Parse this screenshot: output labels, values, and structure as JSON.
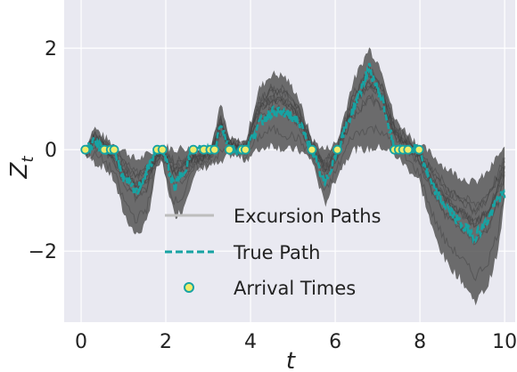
{
  "chart_data": {
    "type": "line",
    "xlabel": "t",
    "ylabel": "Z",
    "ylabel_subscript": "t",
    "xlim": [
      -0.4,
      10.25
    ],
    "ylim": [
      -3.4,
      2.95
    ],
    "xticks": [
      0,
      2,
      4,
      6,
      8,
      10
    ],
    "yticks": [
      2,
      0,
      -2
    ],
    "ytick_labels": [
      "2",
      "0",
      "−2"
    ],
    "grid": true,
    "background": "#e9e9f1",
    "colors": {
      "excursion": "#555555",
      "true_path": "#17a3a3",
      "arrival_fill": "#f0ec6a",
      "arrival_edge": "#17a3a3"
    },
    "legend": {
      "placement": "lower-right",
      "entries": [
        "Excursion Paths",
        "True Path",
        "Arrival Times"
      ]
    },
    "arrival_times": [
      0.1,
      0.55,
      0.7,
      0.78,
      1.8,
      1.92,
      2.65,
      2.9,
      3.05,
      3.15,
      3.5,
      3.8,
      3.88,
      5.45,
      6.05,
      7.4,
      7.5,
      7.6,
      7.72,
      7.98
    ],
    "true_path": {
      "x": [
        0.1,
        0.3,
        0.55,
        0.7,
        0.78,
        1.0,
        1.3,
        1.8,
        1.92,
        2.05,
        2.2,
        2.4,
        2.65,
        2.9,
        3.05,
        3.15,
        3.3,
        3.5,
        3.8,
        3.88,
        4.2,
        4.5,
        4.8,
        5.1,
        5.45,
        5.6,
        5.75,
        6.05,
        6.4,
        6.8,
        7.1,
        7.4,
        7.5,
        7.6,
        7.72,
        7.98,
        8.3,
        8.6,
        9.0,
        9.3,
        9.6,
        9.85,
        10.0
      ],
      "y": [
        0.0,
        0.12,
        0.0,
        0.0,
        0.0,
        -0.55,
        -0.85,
        0.0,
        0.0,
        -0.35,
        -0.75,
        -0.45,
        0.0,
        0.0,
        0.0,
        0.0,
        0.55,
        0.0,
        0.0,
        0.0,
        0.5,
        0.75,
        0.72,
        0.6,
        0.0,
        -0.35,
        -0.7,
        0.0,
        0.75,
        1.6,
        1.0,
        0.0,
        0.0,
        0.0,
        0.0,
        0.0,
        -0.75,
        -1.1,
        -1.5,
        -1.7,
        -1.4,
        -0.95,
        -0.9
      ]
    },
    "excursion_band": {
      "x": [
        0.1,
        0.3,
        0.55,
        0.78,
        1.0,
        1.3,
        1.55,
        1.8,
        1.92,
        2.2,
        2.4,
        2.65,
        3.05,
        3.3,
        3.5,
        3.88,
        4.2,
        4.5,
        4.8,
        5.1,
        5.45,
        5.75,
        6.05,
        6.4,
        6.8,
        7.1,
        7.4,
        7.98,
        8.3,
        8.6,
        9.0,
        9.3,
        9.6,
        9.85,
        10.0
      ],
      "upper": [
        0.0,
        0.45,
        0.25,
        0.1,
        0.0,
        -0.2,
        -0.1,
        0.0,
        0.1,
        0.0,
        0.05,
        0.0,
        0.0,
        0.9,
        0.2,
        0.15,
        1.2,
        1.5,
        1.45,
        1.1,
        0.2,
        0.0,
        0.15,
        1.3,
        2.0,
        1.6,
        0.6,
        0.1,
        -0.1,
        -0.35,
        -0.55,
        -0.65,
        -0.45,
        -0.1,
        0.0
      ],
      "lower": [
        -0.1,
        -0.25,
        -0.35,
        -0.6,
        -1.25,
        -1.7,
        -1.45,
        -0.3,
        -0.3,
        -1.3,
        -1.2,
        -0.5,
        -0.3,
        -0.3,
        -0.1,
        -0.2,
        0.0,
        0.1,
        0.0,
        0.0,
        -0.2,
        -1.1,
        -0.5,
        0.0,
        0.0,
        0.05,
        -0.1,
        -0.6,
        -1.6,
        -2.2,
        -2.6,
        -3.0,
        -2.7,
        -2.0,
        -1.0
      ]
    }
  }
}
